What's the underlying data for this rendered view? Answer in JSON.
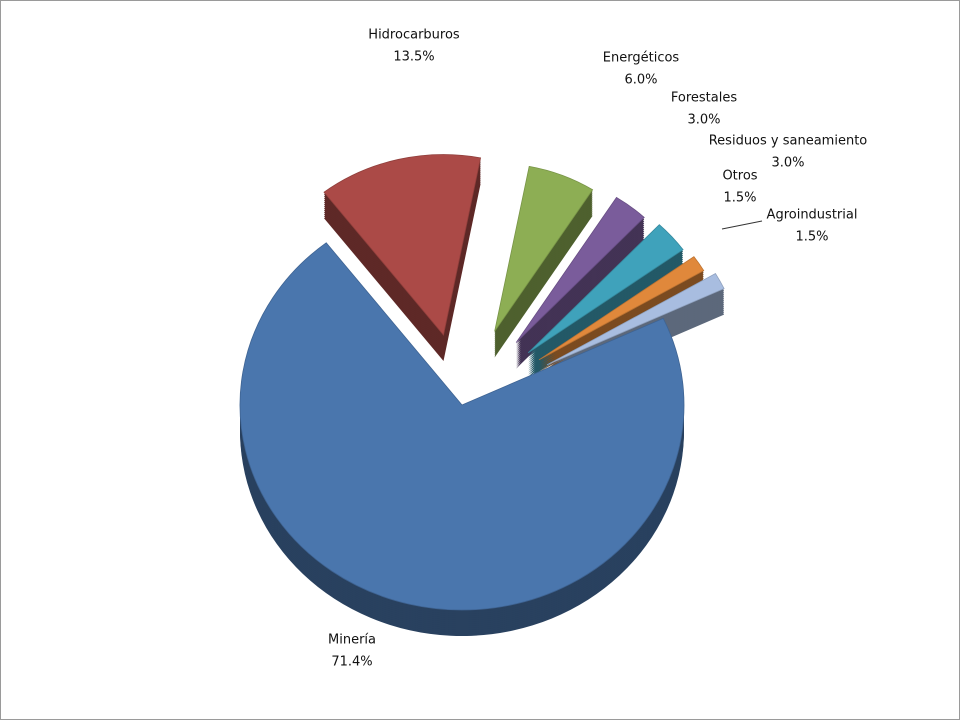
{
  "chart_data": {
    "type": "pie",
    "categories": [
      "Minería",
      "Hidrocarburos",
      "Energéticos",
      "Forestales",
      "Residuos y saneamiento",
      "Otros",
      "Agroindustrial"
    ],
    "values": [
      71.4,
      13.5,
      6.0,
      3.0,
      3.0,
      1.5,
      1.5
    ],
    "value_labels": [
      "71.4%",
      "13.5%",
      "6.0%",
      "3.0%",
      "3.0%",
      "1.5%",
      "1.5%"
    ],
    "colors": [
      "#4a76ad",
      "#ab4a47",
      "#8dae54",
      "#7a5c9b",
      "#3fa2bb",
      "#e0883b",
      "#a8bde0"
    ]
  }
}
